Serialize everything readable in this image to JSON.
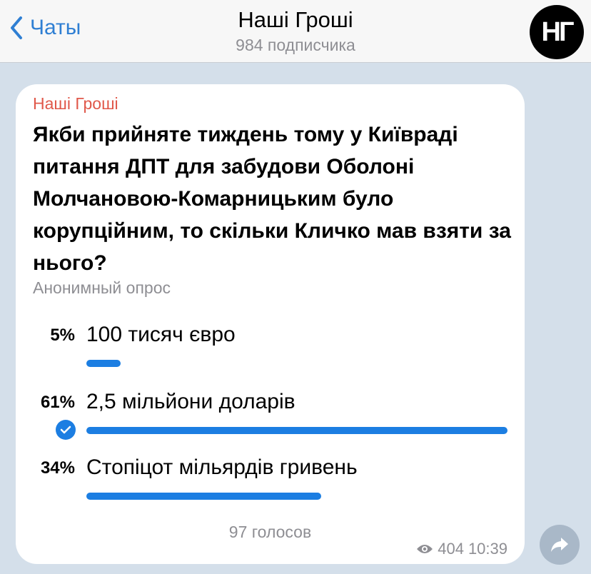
{
  "header": {
    "back_label": "Чаты",
    "title": "Наші Гроші",
    "subtitle": "984 подписчика",
    "avatar_text": "НГ"
  },
  "message": {
    "sender": "Наші Гроші",
    "question": "Якби прийняте тиждень тому у Київраді питання ДПТ для забудови Оболоні Молчановою-Комарницьким було корупційним, то скільки Кличко мав взяти за нього?",
    "poll_type": "Анонимный опрос",
    "options": [
      {
        "percent_label": "5%",
        "percent": 5,
        "text": "100 тисяч євро",
        "selected": false
      },
      {
        "percent_label": "61%",
        "percent": 61,
        "text": "2,5 мільйони доларів",
        "selected": true
      },
      {
        "percent_label": "34%",
        "percent": 34,
        "text": "Стопіцот мільярдів гривень",
        "selected": false
      }
    ],
    "votes": "97 голосов",
    "views": "404",
    "time": "10:39"
  },
  "colors": {
    "accent": "#1c7ee2",
    "sender": "#e0584a",
    "background": "#d4dfea"
  }
}
